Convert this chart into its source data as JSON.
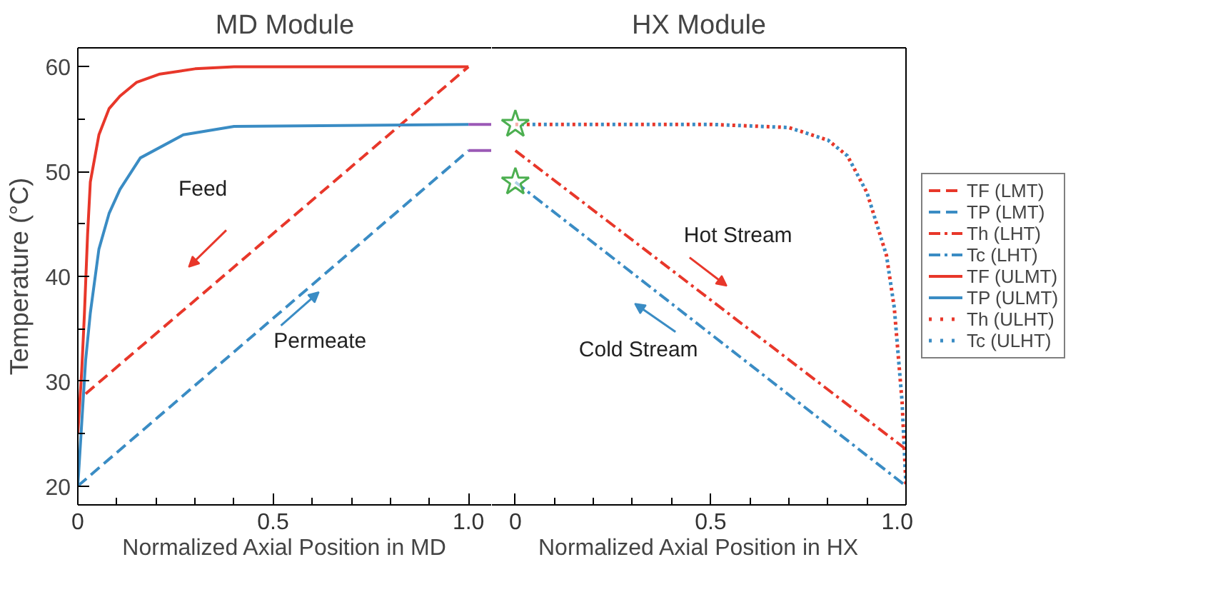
{
  "chart_data": [
    {
      "type": "line",
      "title": "MD Module",
      "xlabel": "Normalized Axial Position in MD",
      "ylabel": "Temperature (°C)",
      "xlim": [
        0,
        1.06
      ],
      "xticks": [
        0,
        0.5,
        {
          "value": 1,
          "label": "1.0"
        }
      ],
      "ylim": [
        18.2,
        61.8
      ],
      "yticks": [
        20,
        30,
        40,
        50,
        60
      ],
      "grid": false,
      "legend": "right",
      "annotations": [
        "Feed",
        "Permeate"
      ],
      "series": [
        {
          "name": "TF (LMT)",
          "color": "#e8372a",
          "line_style": "dashed",
          "x": [
            0.02,
            1.0
          ],
          "values": [
            28.8,
            60
          ]
        },
        {
          "name": "TP (LMT)",
          "color": "#3a8cc4",
          "line_style": "dashed",
          "x": [
            0,
            1.0
          ],
          "values": [
            20,
            52
          ]
        },
        {
          "name": "TF (ULMT)",
          "color": "#e8372a",
          "line_style": "solid",
          "x": [
            0,
            0.01,
            0.017,
            0.025,
            0.032,
            0.054,
            0.08,
            0.108,
            0.15,
            0.21,
            0.3,
            0.4,
            1.0
          ],
          "values": [
            25,
            31,
            36.5,
            44,
            49,
            53.5,
            56,
            57.2,
            58.5,
            59.3,
            59.8,
            60,
            60
          ]
        },
        {
          "name": "TP (ULMT)",
          "color": "#3a8cc4",
          "line_style": "solid",
          "x": [
            0,
            0.01,
            0.02,
            0.032,
            0.054,
            0.08,
            0.108,
            0.16,
            0.27,
            0.4,
            1.0
          ],
          "values": [
            20,
            26,
            32,
            36.5,
            42.6,
            46,
            48.3,
            51.3,
            53.5,
            54.3,
            54.5
          ]
        },
        {
          "color": "#9b59b6",
          "line_style": "solid",
          "x": [
            1.0,
            1.06
          ],
          "values": [
            54.5,
            54.5
          ]
        },
        {
          "color": "#9b59b6",
          "line_style": "solid",
          "x": [
            1.0,
            1.06
          ],
          "values": [
            52,
            52
          ]
        }
      ]
    },
    {
      "type": "line",
      "title": "HX Module",
      "xlabel": "Normalized Axial Position in HX",
      "xlim": [
        -0.06,
        1.0
      ],
      "xticks": [
        0,
        0.5,
        {
          "value": 1,
          "label": "1.0"
        }
      ],
      "ylim": [
        18.2,
        61.8
      ],
      "tick_labels": "x",
      "grid": false,
      "legend": "right",
      "annotations": [
        "Hot Stream",
        "Cold Stream"
      ],
      "series": [
        {
          "name": "Th (LHT)",
          "color": "#e8372a",
          "line_style": "dashdot",
          "x": [
            0,
            1.0
          ],
          "values": [
            52,
            23.5
          ]
        },
        {
          "name": "Tc (LHT)",
          "color": "#3a8cc4",
          "line_style": "dashdot",
          "x": [
            0,
            1.0
          ],
          "values": [
            49,
            20
          ]
        },
        {
          "name": "Th (ULHT)",
          "color": "#e8372a",
          "line_style": "dotted",
          "x": [
            0,
            0.5,
            0.7,
            0.8,
            0.85,
            0.9,
            0.95,
            0.97,
            0.99,
            1.0
          ],
          "values": [
            54.5,
            54.5,
            54.2,
            53,
            51.5,
            48,
            42,
            37,
            28,
            20
          ]
        },
        {
          "name": "Tc (ULHT)",
          "color": "#3a8cc4",
          "line_style": "dotted",
          "x": [
            0,
            0.5,
            0.7,
            0.8,
            0.85,
            0.9,
            0.95,
            0.97,
            0.99,
            1.0
          ],
          "values": [
            54.5,
            54.5,
            54.2,
            53,
            51.5,
            48,
            42,
            37,
            28,
            20
          ]
        },
        {
          "type": "scatter",
          "marker": "star",
          "color": "#4caf50",
          "x": [
            0,
            0
          ],
          "values": [
            54.5,
            49
          ]
        }
      ]
    }
  ]
}
